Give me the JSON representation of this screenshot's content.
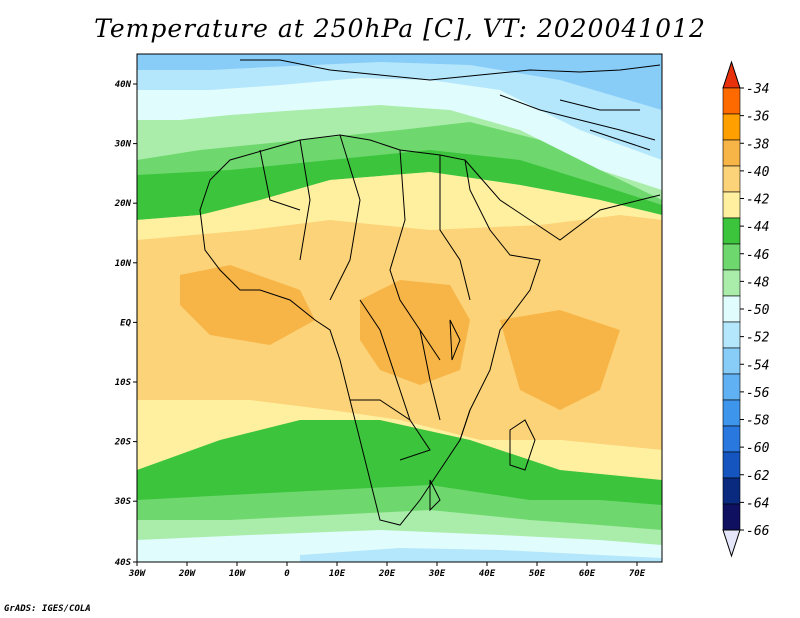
{
  "title": "Temperature at 250hPa [C], VT: 2020041012",
  "credit": "GrADS: IGES/COLA",
  "x_ticks": [
    "30W",
    "20W",
    "10W",
    "0",
    "10E",
    "20E",
    "30E",
    "40E",
    "50E",
    "60E",
    "70E"
  ],
  "y_ticks": [
    "40N",
    "30N",
    "20N",
    "10N",
    "EQ",
    "10S",
    "20S",
    "30S",
    "40S"
  ],
  "colorbar": {
    "labels": [
      "-34",
      "-36",
      "-38",
      "-40",
      "-42",
      "-44",
      "-46",
      "-48",
      "-50",
      "-52",
      "-54",
      "-56",
      "-58",
      "-60",
      "-62",
      "-64",
      "-66"
    ],
    "colors": [
      "#e8320c",
      "#ff6a00",
      "#ffa000",
      "#f7b447",
      "#fcd378",
      "#fff0a0",
      "#3cc43c",
      "#6ed86e",
      "#aaedaa",
      "#e0fcfc",
      "#b4e6fc",
      "#88ccf8",
      "#5fb1f3",
      "#3e95ec",
      "#2878e0",
      "#1555c0",
      "#0a2a80",
      "#0f1060",
      "#e6e6fa"
    ]
  },
  "map_colors": {
    "c_m50": "#aaedaa",
    "c_m52": "#e0fcfc",
    "c_m54": "#b4e6fc",
    "c_m56": "#88ccf8",
    "c_m58": "#5fb1f3",
    "c_m48": "#6ed86e",
    "c_m46": "#3cc43c",
    "c_m44": "#fff0a0",
    "c_m42": "#fcd378",
    "c_m40": "#f7b447"
  }
}
